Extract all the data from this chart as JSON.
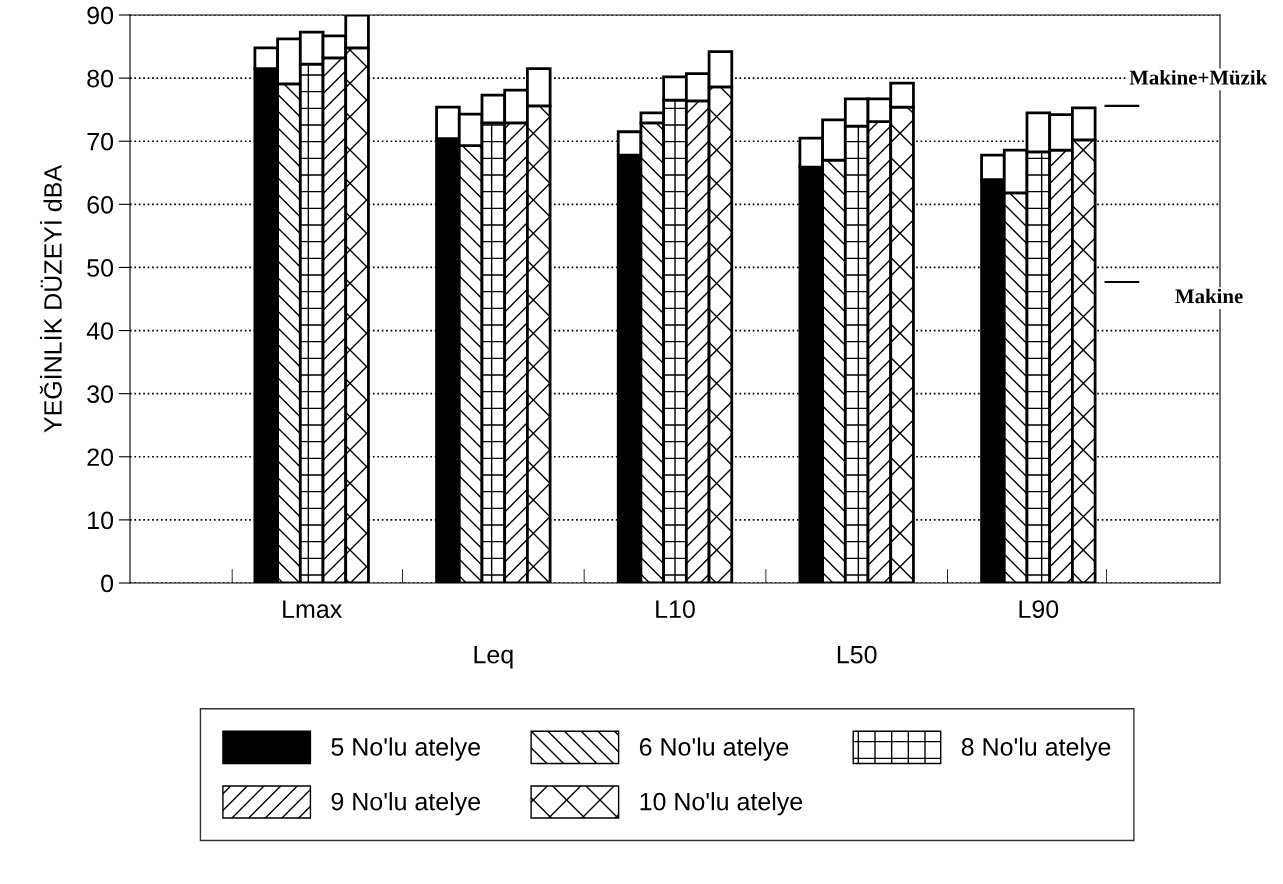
{
  "chart_data": {
    "type": "bar",
    "stacked": true,
    "ylabel": "YEĞİNLİK DÜZEYİ dBA",
    "categories": [
      null,
      null,
      null,
      null,
      "Lmax",
      null,
      null,
      null,
      null,
      null,
      null,
      null,
      "Leq",
      null,
      null,
      null,
      null,
      null,
      null,
      null,
      "L10",
      null,
      null,
      null,
      null,
      null,
      null,
      null,
      "L50",
      null,
      null,
      null,
      null,
      null,
      null,
      null,
      "L90",
      null,
      null,
      null
    ],
    "ylim": [
      0,
      90
    ],
    "yticks": [
      0,
      10,
      20,
      30,
      40,
      50,
      60,
      70,
      80,
      90
    ],
    "grid": "y",
    "legend": "bottom",
    "series": [
      {
        "name": "5 No'lu atelye",
        "color": "#000000",
        "values": [
          null,
          null,
          81.5,
          null,
          null,
          null,
          null,
          null,
          null,
          null,
          70.4,
          null,
          null,
          null,
          null,
          null,
          null,
          null,
          67.8,
          null,
          null,
          null,
          null,
          null,
          null,
          null,
          65.9,
          null,
          null,
          null,
          null,
          null,
          null,
          null,
          63.9,
          null,
          null,
          null,
          null,
          null
        ]
      },
      {
        "color": "#ffffff",
        "values": [
          null,
          null,
          3.3,
          null,
          null,
          null,
          null,
          null,
          null,
          null,
          5.0,
          null,
          null,
          null,
          null,
          null,
          null,
          null,
          3.7,
          null,
          null,
          null,
          null,
          null,
          null,
          null,
          4.6,
          null,
          null,
          null,
          null,
          null,
          null,
          null,
          3.9,
          null,
          null,
          null,
          null,
          null
        ]
      },
      {
        "name": "6 No'lu atelye",
        "color": "#000000",
        "values": [
          null,
          null,
          null,
          79.1,
          null,
          null,
          null,
          null,
          null,
          null,
          null,
          69.3,
          null,
          null,
          null,
          null,
          null,
          null,
          null,
          72.9,
          null,
          null,
          null,
          null,
          null,
          null,
          null,
          67.0,
          null,
          null,
          null,
          null,
          null,
          null,
          null,
          61.8,
          null,
          null,
          null,
          null
        ]
      },
      {
        "color": "#ffffff",
        "values": [
          null,
          null,
          null,
          7.1,
          null,
          null,
          null,
          null,
          null,
          null,
          null,
          5.0,
          null,
          null,
          null,
          null,
          null,
          null,
          null,
          1.6,
          null,
          null,
          null,
          null,
          null,
          null,
          null,
          6.4,
          null,
          null,
          null,
          null,
          null,
          null,
          null,
          6.8,
          null,
          null,
          null,
          null
        ]
      },
      {
        "name": "8 No'lu atelye",
        "color": "#000000",
        "values": [
          null,
          null,
          null,
          null,
          82.2,
          null,
          null,
          null,
          null,
          null,
          null,
          null,
          72.9,
          null,
          null,
          null,
          null,
          null,
          null,
          null,
          76.5,
          null,
          null,
          null,
          null,
          null,
          null,
          null,
          72.4,
          null,
          null,
          null,
          null,
          null,
          null,
          null,
          68.3,
          null,
          null,
          null
        ]
      },
      {
        "color": "#ffffff",
        "values": [
          null,
          null,
          null,
          null,
          5.1,
          null,
          null,
          null,
          null,
          null,
          null,
          null,
          4.4,
          null,
          null,
          null,
          null,
          null,
          null,
          null,
          3.7,
          null,
          null,
          null,
          null,
          null,
          null,
          null,
          4.3,
          null,
          null,
          null,
          null,
          null,
          null,
          null,
          6.2,
          null,
          null,
          null
        ]
      },
      {
        "name": "9 No'lu atelye",
        "color": "#000000",
        "values": [
          null,
          null,
          null,
          null,
          null,
          83.2,
          null,
          null,
          null,
          null,
          null,
          null,
          null,
          72.9,
          null,
          null,
          null,
          null,
          null,
          null,
          null,
          76.4,
          null,
          null,
          null,
          null,
          null,
          null,
          null,
          73.1,
          null,
          null,
          null,
          null,
          null,
          null,
          null,
          68.6,
          null,
          null
        ]
      },
      {
        "color": "#ffffff",
        "values": [
          null,
          null,
          null,
          null,
          null,
          3.5,
          null,
          null,
          null,
          null,
          null,
          null,
          null,
          5.2,
          null,
          null,
          null,
          null,
          null,
          null,
          null,
          4.3,
          null,
          null,
          null,
          null,
          null,
          null,
          null,
          3.6,
          null,
          null,
          null,
          null,
          null,
          null,
          null,
          5.6,
          null,
          null
        ]
      },
      {
        "name": "10 No'lu atelye",
        "color": "#000000",
        "values": [
          null,
          null,
          null,
          null,
          null,
          null,
          84.8,
          null,
          null,
          null,
          null,
          null,
          null,
          null,
          75.6,
          null,
          null,
          null,
          null,
          null,
          null,
          null,
          78.6,
          null,
          null,
          null,
          null,
          null,
          null,
          null,
          75.4,
          null,
          null,
          null,
          null,
          null,
          null,
          null,
          70.2,
          null
        ]
      },
      {
        "color": "#ffffff",
        "values": [
          null,
          null,
          null,
          null,
          null,
          null,
          5.2,
          null,
          null,
          null,
          null,
          null,
          null,
          null,
          5.9,
          null,
          null,
          null,
          null,
          null,
          null,
          null,
          5.6,
          null,
          null,
          null,
          null,
          null,
          null,
          null,
          3.8,
          null,
          null,
          null,
          null,
          null,
          null,
          null,
          5.1,
          null
        ]
      }
    ],
    "annotations": [
      "Makine+Müzik",
      "Makine"
    ]
  }
}
